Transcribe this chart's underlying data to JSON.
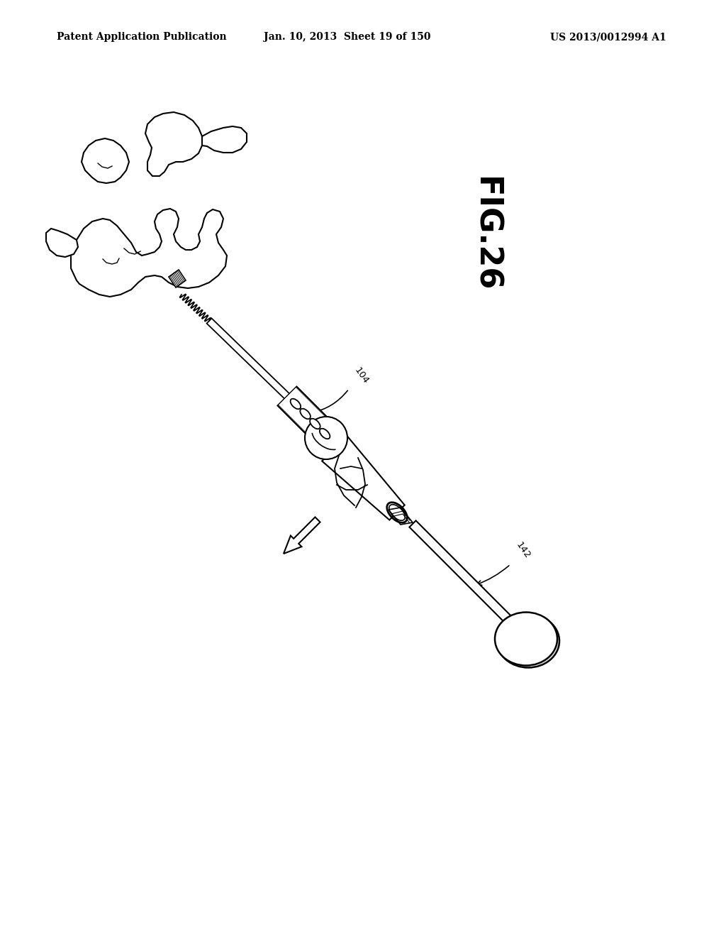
{
  "background_color": "#ffffff",
  "header_left": "Patent Application Publication",
  "header_center": "Jan. 10, 2013  Sheet 19 of 150",
  "header_right": "US 2013/0012994 A1",
  "fig_label": "FIG.26",
  "label_104": "104",
  "label_142": "142",
  "header_fontsize": 10,
  "fig_label_fontsize": 32
}
